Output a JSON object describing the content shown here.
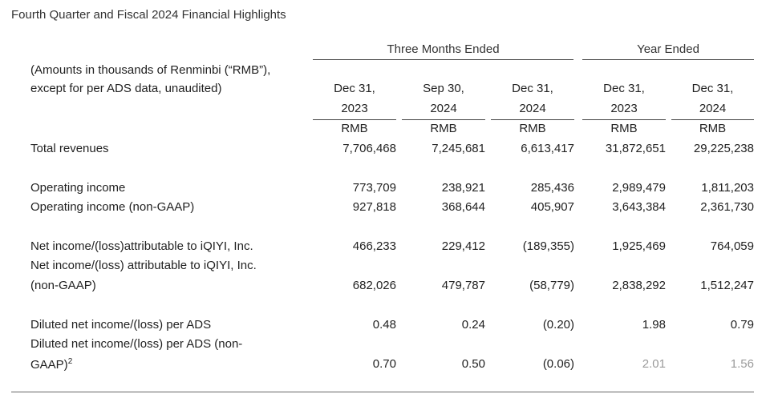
{
  "title": "Fourth Quarter and Fiscal 2024 Financial Highlights",
  "group_headers": {
    "three_months": "Three Months Ended",
    "year": "Year Ended"
  },
  "units_note": {
    "line1": "(Amounts in thousands of Renminbi (“RMB”),",
    "line2": "except for per ADS data, unaudited)"
  },
  "columns": [
    {
      "date": "Dec 31,",
      "year": "2023",
      "currency": "RMB"
    },
    {
      "date": "Sep 30,",
      "year": "2024",
      "currency": "RMB"
    },
    {
      "date": "Dec 31,",
      "year": "2024",
      "currency": "RMB"
    },
    {
      "date": "Dec 31,",
      "year": "2023",
      "currency": "RMB"
    },
    {
      "date": "Dec 31,",
      "year": "2024",
      "currency": "RMB"
    }
  ],
  "rows": {
    "total_revenues": {
      "label": "Total revenues",
      "values": [
        "7,706,468",
        "7,245,681",
        "6,613,417",
        "31,872,651",
        "29,225,238"
      ]
    },
    "operating_income": {
      "label": "Operating income",
      "values": [
        "773,709",
        "238,921",
        "285,436",
        "2,989,479",
        "1,811,203"
      ]
    },
    "operating_income_ng": {
      "label": "Operating income (non-GAAP)",
      "values": [
        "927,818",
        "368,644",
        "405,907",
        "3,643,384",
        "2,361,730"
      ]
    },
    "net_income": {
      "label": "Net income/(loss)attributable to iQIYI, Inc.",
      "values": [
        "466,233",
        "229,412",
        "(189,355)",
        "1,925,469",
        "764,059"
      ]
    },
    "net_income_ng": {
      "label1": "Net income/(loss) attributable to iQIYI, Inc.",
      "label2": "(non-GAAP)",
      "values": [
        "682,026",
        "479,787",
        "(58,779)",
        "2,838,292",
        "1,512,247"
      ]
    },
    "diluted": {
      "label": "Diluted net income/(loss) per ADS",
      "values": [
        "0.48",
        "0.24",
        "(0.20)",
        "1.98",
        "0.79"
      ]
    },
    "diluted_ng": {
      "label1": "Diluted net income/(loss) per ADS (non-",
      "label2": "GAAP)",
      "sup": "2",
      "values": [
        "0.70",
        "0.50",
        "(0.06)",
        "2.01",
        "1.56"
      ]
    }
  }
}
